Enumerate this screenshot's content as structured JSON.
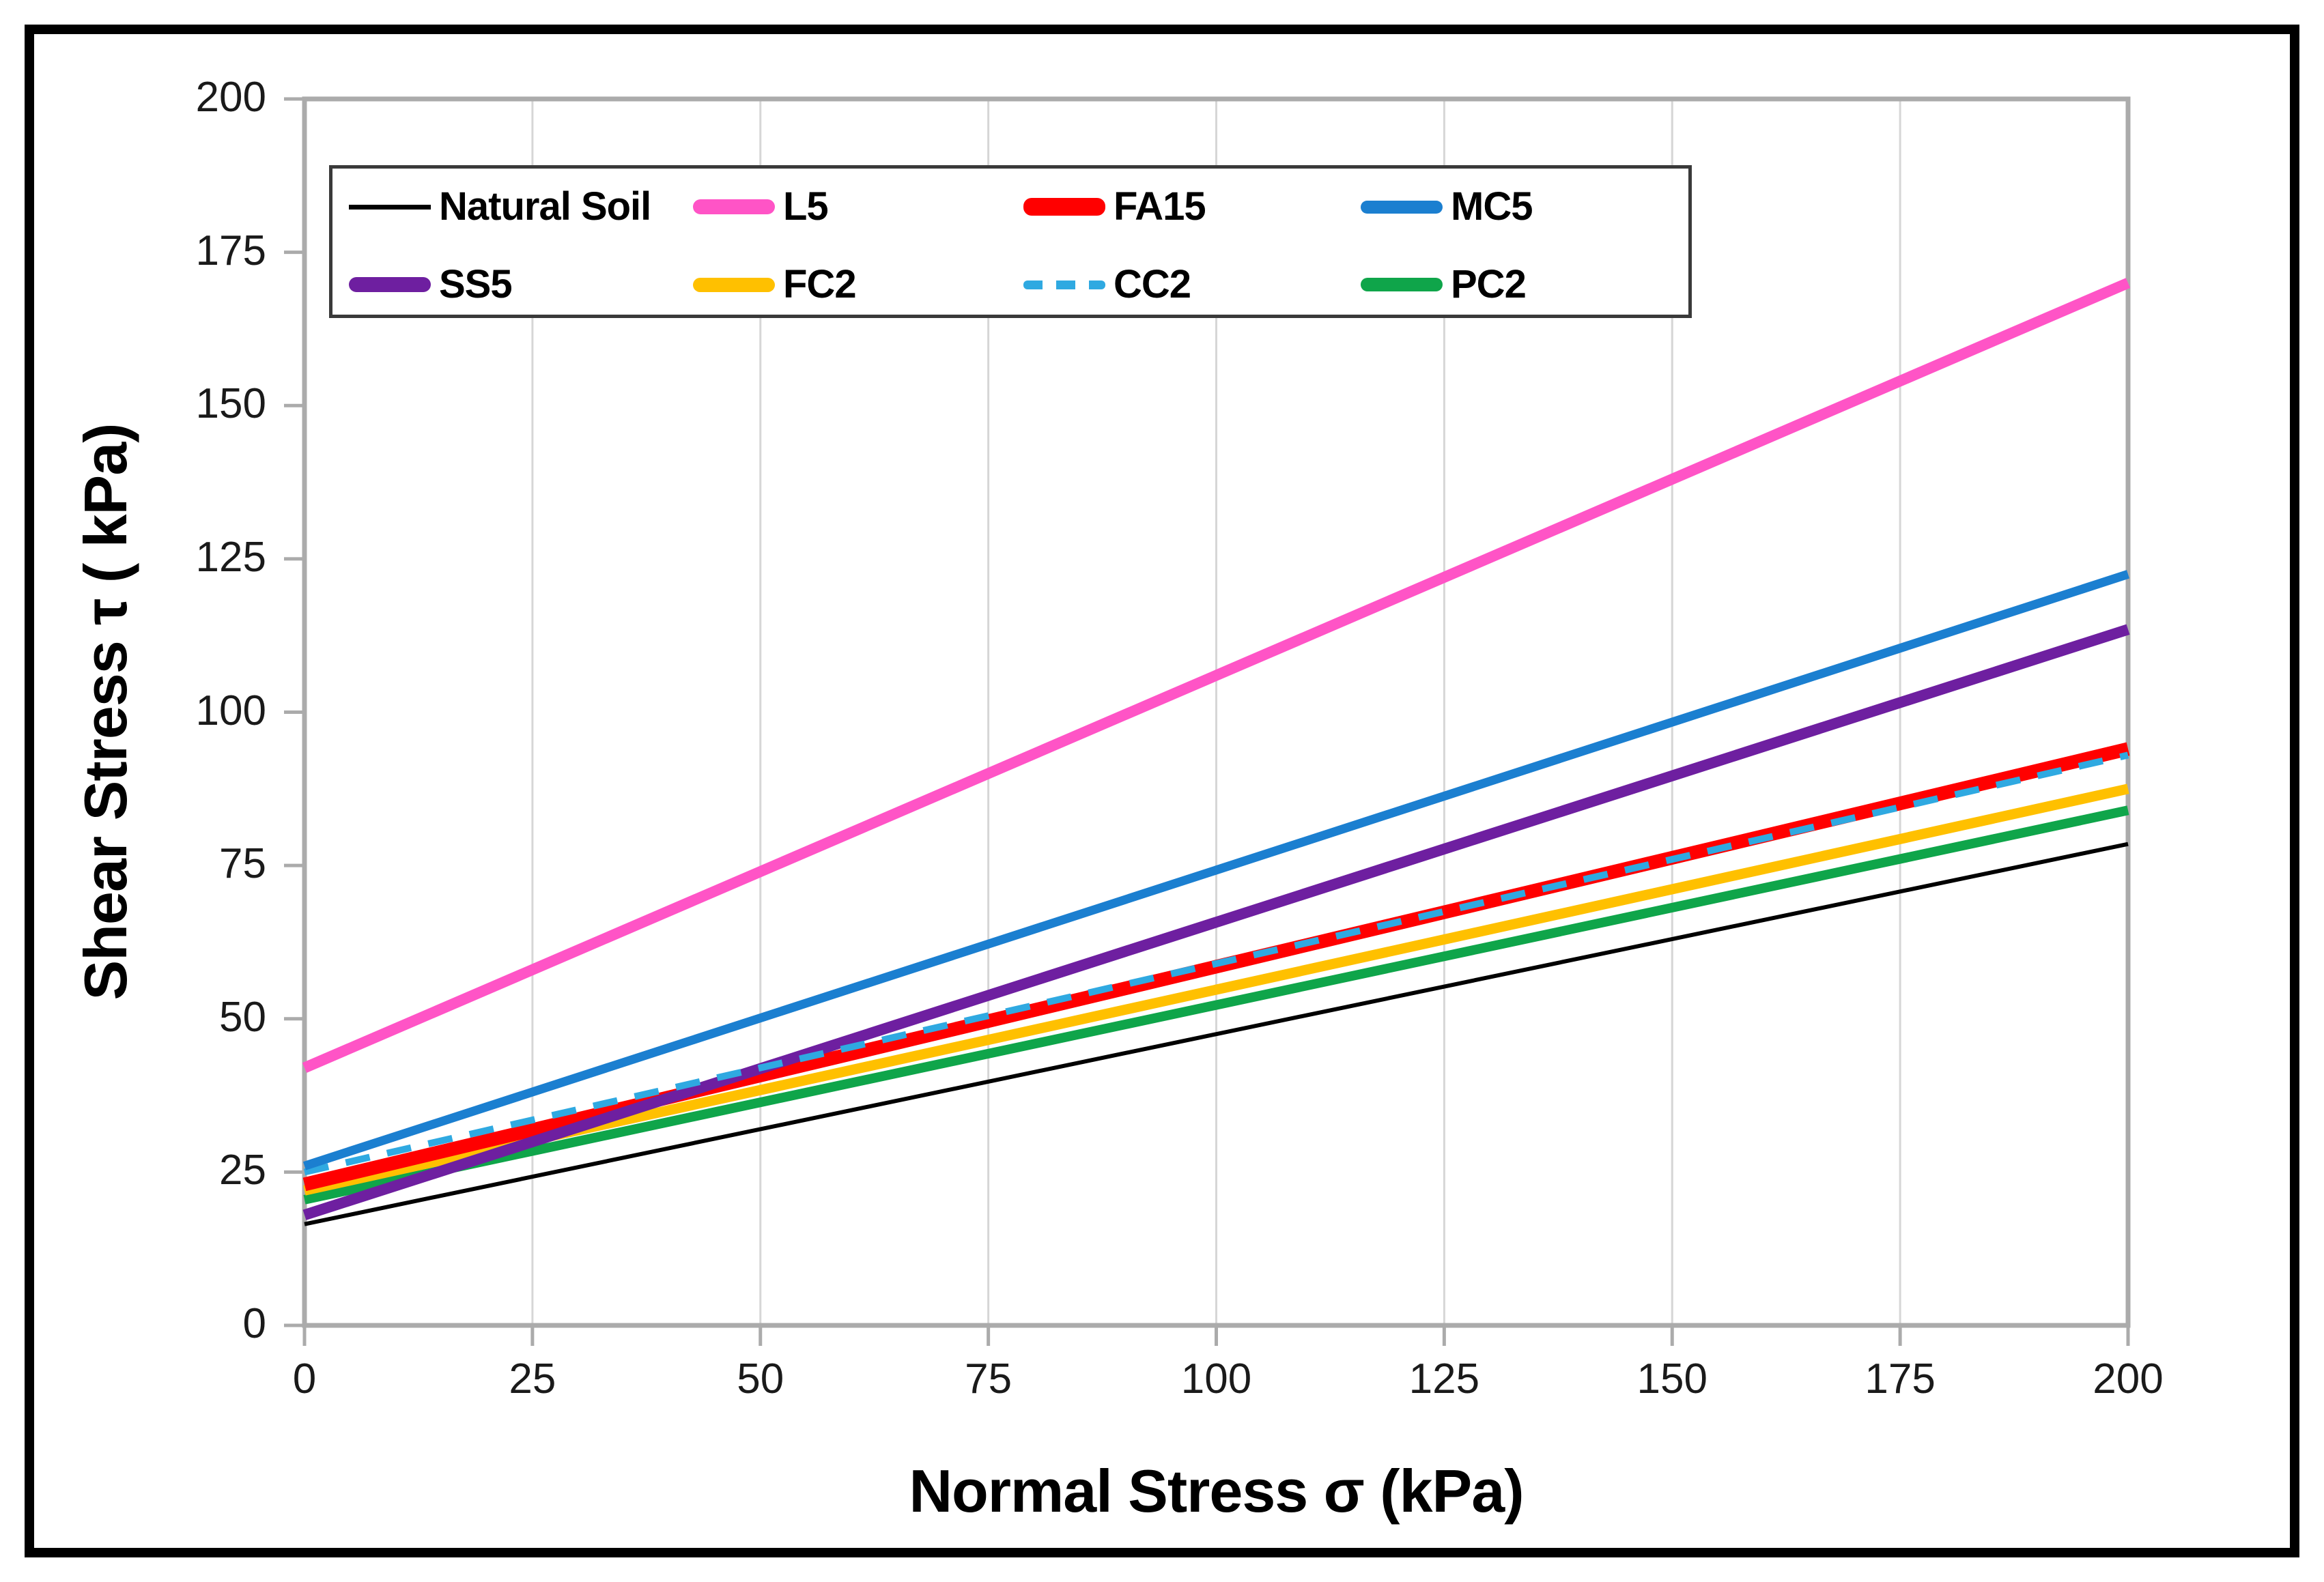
{
  "chart_data": {
    "type": "line",
    "xlabel": "Normal Stress σ (kPa)",
    "ylabel": "Shear Stress τ ( kPa)",
    "xlim": [
      0,
      200
    ],
    "ylim": [
      0,
      200
    ],
    "x_ticks": [
      0,
      25,
      50,
      75,
      100,
      125,
      150,
      175,
      200
    ],
    "y_ticks": [
      0,
      25,
      50,
      75,
      100,
      125,
      150,
      175,
      200
    ],
    "grid": "vertical-only",
    "gridline_color": "#d6d6d6",
    "frame_color": "#ababab",
    "legend_position": "top-left-inside",
    "x": [
      0,
      200
    ],
    "series": [
      {
        "name": "Natural Soil",
        "color": "#000000",
        "width": 6,
        "dash": null,
        "values": [
          16.5,
          78.5
        ]
      },
      {
        "name": "L5",
        "color": "#FF54C6",
        "width": 16,
        "dash": null,
        "values": [
          42,
          170
        ]
      },
      {
        "name": "FA15",
        "color": "#FF0000",
        "width": 20,
        "dash": null,
        "values": [
          23,
          94
        ]
      },
      {
        "name": "MC5",
        "color": "#1B7FD0",
        "width": 13,
        "dash": null,
        "values": [
          26,
          122.5
        ]
      },
      {
        "name": "SS5",
        "color": "#6E1FA0",
        "width": 16,
        "dash": null,
        "values": [
          18,
          113.5
        ]
      },
      {
        "name": "FC2",
        "color": "#FFC000",
        "width": 15,
        "dash": null,
        "values": [
          22,
          87.5
        ]
      },
      {
        "name": "CC2",
        "color": "#2FA9E1",
        "width": 10,
        "dash": [
          36,
          26
        ],
        "values": [
          25,
          93
        ]
      },
      {
        "name": "PC2",
        "color": "#0FA54A",
        "width": 14,
        "dash": null,
        "values": [
          20.5,
          84
        ]
      }
    ],
    "draw_order": [
      "Natural Soil",
      "PC2",
      "FC2",
      "FA15",
      "SS5",
      "CC2",
      "MC5",
      "L5"
    ]
  }
}
